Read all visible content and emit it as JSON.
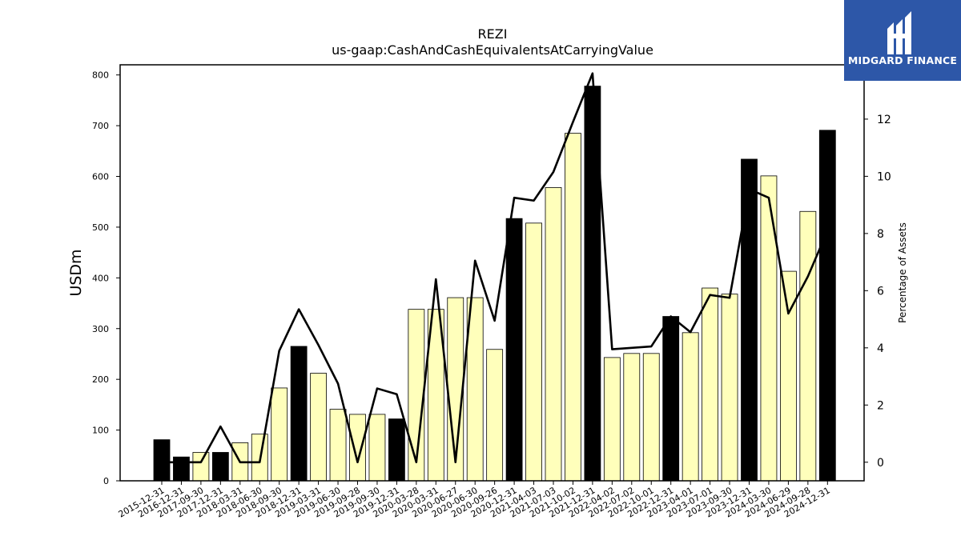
{
  "chart_data": {
    "type": "bar",
    "title": "REZI",
    "subtitle": "us-gaap:CashAndCashEquivalentsAtCarryingValue",
    "ylabel": "USDm",
    "y2label": "Percentage of Assets",
    "ylim": [
      0,
      820
    ],
    "y2lim": [
      -0.65,
      13.9
    ],
    "yticks": [
      0,
      100,
      200,
      300,
      400,
      500,
      600,
      700,
      800
    ],
    "y2ticks": [
      0,
      2,
      4,
      6,
      8,
      10,
      12
    ],
    "categories": [
      "2015-12-31",
      "2016-12-31",
      "2017-09-30",
      "2017-12-31",
      "2018-03-31",
      "2018-06-30",
      "2018-09-30",
      "2018-12-31",
      "2019-03-31",
      "2019-06-30",
      "2019-09-28",
      "2019-09-30",
      "2019-12-31",
      "2020-03-28",
      "2020-03-31",
      "2020-06-27",
      "2020-06-30",
      "2020-09-26",
      "2020-12-31",
      "2021-04-03",
      "2021-07-03",
      "2021-10-02",
      "2021-12-31",
      "2022-04-02",
      "2022-07-02",
      "2022-10-01",
      "2022-12-31",
      "2023-04-01",
      "2023-07-01",
      "2023-09-30",
      "2023-12-31",
      "2024-03-30",
      "2024-06-29",
      "2024-09-28",
      "2024-12-31"
    ],
    "series": [
      {
        "type": "bar",
        "values": [
          81,
          47,
          56,
          56,
          75,
          92,
          183,
          265,
          212,
          141,
          131,
          131,
          122,
          338,
          338,
          361,
          361,
          259,
          517,
          508,
          578,
          685,
          778,
          243,
          251,
          251,
          324,
          292,
          380,
          368,
          634,
          601,
          413,
          531,
          691
        ],
        "annual": [
          true,
          true,
          false,
          true,
          false,
          false,
          false,
          true,
          false,
          false,
          false,
          false,
          true,
          false,
          false,
          false,
          false,
          false,
          true,
          false,
          false,
          false,
          true,
          false,
          false,
          false,
          true,
          false,
          false,
          false,
          true,
          false,
          false,
          false,
          true
        ],
        "colors": {
          "annual": "#000000",
          "quarterly": "#ffffbb"
        }
      },
      {
        "type": "line",
        "axis": "right",
        "values": [
          0,
          0,
          0,
          1.25,
          0,
          0,
          3.9,
          5.35,
          4.1,
          2.75,
          0,
          2.58,
          2.38,
          0,
          6.4,
          0,
          7.05,
          4.95,
          9.25,
          9.15,
          10.15,
          11.9,
          13.6,
          3.95,
          4.0,
          4.05,
          5.1,
          4.55,
          5.85,
          5.75,
          9.55,
          9.25,
          5.2,
          6.5,
          8.1
        ],
        "color": "#000000"
      }
    ]
  },
  "logo": {
    "text": "MIDGARD FINANCE",
    "color": "#2d57a8"
  }
}
